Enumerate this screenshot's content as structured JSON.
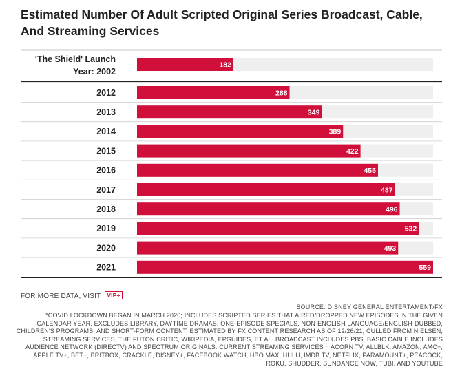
{
  "title": "Estimated Number Of Adult Scripted Original Series Broadcast, Cable, And Streaming Services",
  "more_data": {
    "text": "FOR MORE DATA, VISIT",
    "badge": "VIP+"
  },
  "source": "SOURCE: DISNEY GENERAL ENTERTAMENT/FX",
  "note": "*COVID LOCKDOWN BEGAN IN MARCH 2020; INCLUDES SCRIPTED SERIES THAT AIRED/DROPPED NEW EPISODES IN THE GIVEN CALENDAR YEAR. EXCLUDES LIBRARY, DAYTIME DRAMAS, ONE-EPISODE SPECIALS, NON-ENGLISH LANGUAGE/ENGLISH-DUBBED, CHILDREN'S PROGRAMS, AND SHORT-FORM CONTENT. ESTIMATED BY FX CONTENT RESEARCH AS OF 12/26/21; CULLED FROM NIELSEN, STREAMING SERVICES, THE FUTON CRITIC, WIKIPEDIA, EPGUIDES, ET AL. BROADCAST INCLUDES PBS. BASIC CABLE INCLUDES AUDIENCE NETWORK (DIRECTV) AND SPECTRUM ORIGINALS. CURRENT STREAMING SERVICES = ACORN TV, ALLBLK, AMAZON, AMC+, APPLE TV+, BET+, BRITBOX, CRACKLE, DISNEY+, FACEBOOK WATCH, HBO MAX, HULU, IMDB TV, NETFLIX, PARAMOUNT+, PEACOCK, ROKU, SHUDDER, SUNDANCE NOW, TUBI, AND YOUTUBE",
  "colors": {
    "bar": "#d0103a",
    "track": "#efefef",
    "rule": "#222222",
    "separator": "#cccccc"
  },
  "chart_data": {
    "type": "bar",
    "orientation": "horizontal",
    "title": "Estimated Number Of Adult Scripted Original Series Broadcast, Cable, And Streaming Services",
    "categories": [
      [
        "'The Shield' Launch",
        "Year: 2002"
      ],
      [
        "2012"
      ],
      [
        "2013"
      ],
      [
        "2014"
      ],
      [
        "2015"
      ],
      [
        "2016"
      ],
      [
        "2017"
      ],
      [
        "2018"
      ],
      [
        "2019"
      ],
      [
        "2020"
      ],
      [
        "2021"
      ]
    ],
    "values": [
      182,
      288,
      349,
      389,
      422,
      455,
      487,
      496,
      532,
      493,
      559
    ],
    "xlim": [
      0,
      559
    ],
    "data_labels": true,
    "grid": false,
    "xlabel": "",
    "ylabel": ""
  }
}
